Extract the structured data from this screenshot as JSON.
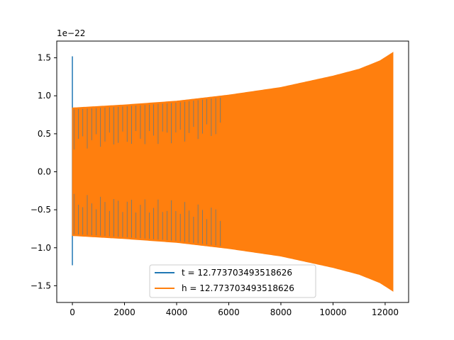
{
  "chart_data": {
    "type": "line",
    "offset_text": "1e−22",
    "xlim": [
      -600,
      12900
    ],
    "ylim": [
      -1.72,
      1.72
    ],
    "x_ticks": [
      0,
      2000,
      4000,
      6000,
      8000,
      10000,
      12000
    ],
    "x_tick_labels": [
      "0",
      "2000",
      "4000",
      "6000",
      "8000",
      "10000",
      "12000"
    ],
    "y_ticks": [
      -1.5,
      -1.0,
      -0.5,
      0.0,
      0.5,
      1.0,
      1.5
    ],
    "y_tick_labels": [
      "−1.5",
      "−1.0",
      "−0.5",
      "0.0",
      "0.5",
      "1.0",
      "1.5"
    ],
    "grid": false,
    "legend_position": "lower center",
    "series": [
      {
        "name": "t = 12.773703493518626",
        "color": "#1f77b4",
        "spike": {
          "x": 0,
          "ymax": 1.52,
          "ymin": -1.23
        },
        "envelope": {
          "x": [
            0,
            2000,
            4000,
            6000,
            8000,
            10000,
            11000,
            11800,
            12300
          ],
          "amplitude": [
            0.84,
            0.88,
            0.93,
            1.01,
            1.11,
            1.26,
            1.35,
            1.46,
            1.57
          ]
        }
      },
      {
        "name": "h = 12.773703493518626",
        "color": "#ff7f0e",
        "envelope": {
          "x": [
            0,
            2000,
            4000,
            6000,
            8000,
            10000,
            11000,
            11800,
            12300
          ],
          "amplitude": [
            0.84,
            0.88,
            0.93,
            1.01,
            1.11,
            1.26,
            1.35,
            1.46,
            1.57
          ]
        }
      }
    ]
  }
}
